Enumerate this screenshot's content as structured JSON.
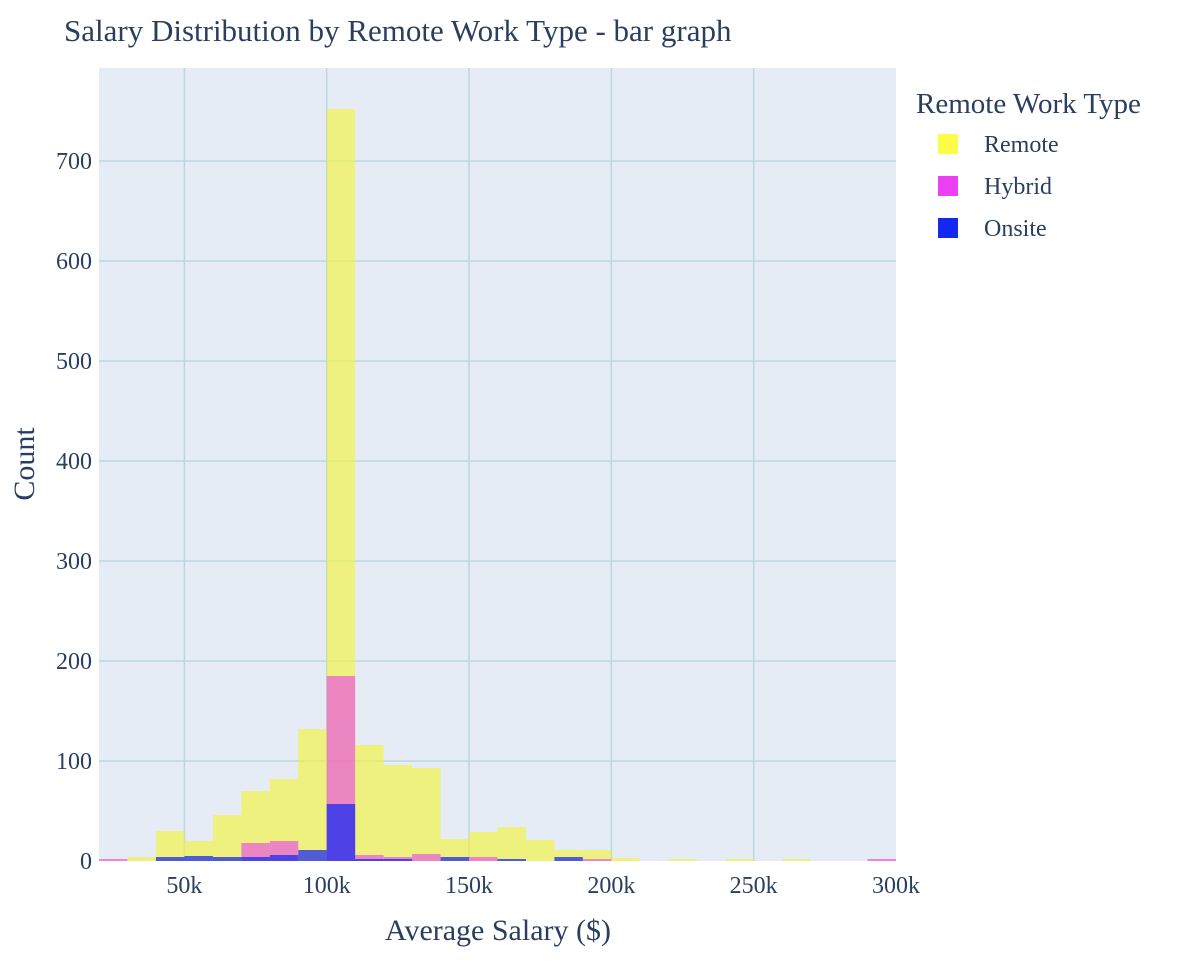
{
  "chart_data": {
    "type": "bar",
    "barmode": "overlay",
    "title": "Salary Distribution by Remote Work Type - bar graph",
    "xlabel": "Average Salary ($)",
    "ylabel": "Count",
    "xlim": [
      20000,
      300000
    ],
    "ylim": [
      0,
      793
    ],
    "bin_width": 10000,
    "x_ticks": [
      50000,
      100000,
      150000,
      200000,
      250000,
      300000
    ],
    "x_tick_labels": [
      "50k",
      "100k",
      "150k",
      "200k",
      "250k",
      "300k"
    ],
    "y_ticks": [
      0,
      100,
      200,
      300,
      400,
      500,
      600,
      700
    ],
    "y_tick_labels": [
      "0",
      "100",
      "200",
      "300",
      "400",
      "500",
      "600",
      "700"
    ],
    "grid": true,
    "legend": {
      "title": "Remote Work Type",
      "position": "top-right"
    },
    "bin_starts": [
      20000,
      30000,
      40000,
      50000,
      60000,
      70000,
      80000,
      90000,
      100000,
      110000,
      120000,
      130000,
      140000,
      150000,
      160000,
      170000,
      180000,
      190000,
      200000,
      210000,
      220000,
      230000,
      240000,
      250000,
      260000,
      270000,
      280000,
      290000
    ],
    "series": [
      {
        "name": "Remote",
        "color": "#f5f530",
        "opacity": 0.6,
        "values": [
          0,
          4,
          30,
          20,
          46,
          70,
          82,
          132,
          752,
          116,
          96,
          93,
          22,
          29,
          34,
          21,
          11,
          11,
          3,
          0,
          2,
          0,
          2,
          0,
          2,
          0,
          0,
          0
        ]
      },
      {
        "name": "Hybrid",
        "color": "#e83ff0",
        "opacity": 0.6,
        "values": [
          2,
          0,
          0,
          0,
          0,
          18,
          20,
          0,
          185,
          6,
          4,
          7,
          0,
          4,
          0,
          0,
          0,
          2,
          0,
          0,
          0,
          0,
          0,
          0,
          0,
          0,
          0,
          2
        ]
      },
      {
        "name": "Onsite",
        "color": "#1a2af0",
        "opacity": 0.75,
        "values": [
          0,
          0,
          4,
          5,
          4,
          4,
          6,
          11,
          57,
          2,
          2,
          0,
          4,
          0,
          2,
          0,
          4,
          0,
          0,
          0,
          0,
          0,
          0,
          0,
          0,
          0,
          0,
          0
        ]
      }
    ],
    "legend_swatch_colors": [
      "#fcfc48",
      "#ec40f4",
      "#1428f2"
    ],
    "plot_background": "#e5ecf6",
    "grid_color": "#bcd6e2"
  }
}
